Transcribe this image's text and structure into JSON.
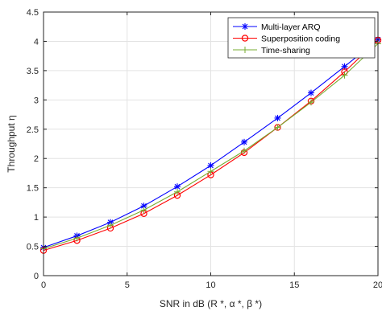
{
  "chart_data": {
    "type": "line",
    "xlabel": "SNR in dB (R *, α *, β *)",
    "ylabel": "Throughput η",
    "xlim": [
      0,
      20
    ],
    "ylim": [
      0,
      4.5
    ],
    "xticks": [
      0,
      5,
      10,
      15,
      20
    ],
    "yticks": [
      0,
      0.5,
      1,
      1.5,
      2,
      2.5,
      3,
      3.5,
      4,
      4.5
    ],
    "grid": true,
    "legend_position": "top-right",
    "x": [
      0,
      2,
      4,
      6,
      8,
      10,
      12,
      14,
      16,
      18,
      20
    ],
    "series": [
      {
        "name": "Multi-layer ARQ",
        "color": "#0000ff",
        "marker": "asterisk",
        "values": [
          0.48,
          0.68,
          0.91,
          1.19,
          1.52,
          1.88,
          2.28,
          2.69,
          3.12,
          3.57,
          4.03
        ]
      },
      {
        "name": "Superposition coding",
        "color": "#ff0000",
        "marker": "circle",
        "values": [
          0.43,
          0.6,
          0.81,
          1.06,
          1.37,
          1.72,
          2.1,
          2.53,
          2.98,
          3.48,
          4.02
        ]
      },
      {
        "name": "Time-sharing",
        "color": "#77ac30",
        "marker": "plus",
        "values": [
          0.46,
          0.64,
          0.86,
          1.12,
          1.43,
          1.78,
          2.13,
          2.53,
          2.96,
          3.42,
          3.96
        ]
      }
    ]
  }
}
